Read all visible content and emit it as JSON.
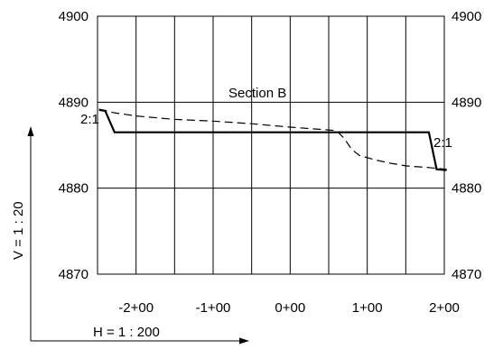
{
  "chart_data": {
    "type": "line",
    "title": "Section B",
    "x_ticks": [
      "-2+00",
      "-1+00",
      "0+00",
      "1+00",
      "2+00"
    ],
    "y_ticks_left": [
      "4870",
      "4880",
      "4890",
      "4900"
    ],
    "y_ticks_right": [
      "4870",
      "4880",
      "4890",
      "4900"
    ],
    "xlim": [
      -250,
      200
    ],
    "ylim": [
      4870,
      4900
    ],
    "x_grid_step": 50,
    "y_grid_step": 10,
    "grid": true,
    "series": [
      {
        "style": "solid",
        "role": "proposed section",
        "color": "#000000",
        "points": [
          [
            -248,
            4889.1
          ],
          [
            -240,
            4889.0
          ],
          [
            -228,
            4886.5
          ],
          [
            180,
            4886.5
          ],
          [
            190,
            4882.2
          ],
          [
            203,
            4882.1
          ]
        ]
      },
      {
        "style": "dashed",
        "role": "existing ground",
        "color": "#000000",
        "points": [
          [
            -248,
            4889.2
          ],
          [
            -230,
            4888.8
          ],
          [
            -200,
            4888.4
          ],
          [
            -150,
            4888.0
          ],
          [
            -100,
            4887.8
          ],
          [
            -50,
            4887.5
          ],
          [
            0,
            4887.1
          ],
          [
            60,
            4886.7
          ],
          [
            70,
            4885.8
          ],
          [
            80,
            4884.5
          ],
          [
            90,
            4883.8
          ],
          [
            110,
            4883.3
          ],
          [
            130,
            4882.9
          ],
          [
            150,
            4882.6
          ],
          [
            180,
            4882.4
          ],
          [
            203,
            4882.2
          ]
        ]
      }
    ],
    "annotations": [
      {
        "text": "2:1",
        "x": -259,
        "y": 4887.3
      },
      {
        "text": "2:1",
        "x": 188,
        "y": 4885.0
      }
    ]
  },
  "scale": {
    "vertical": "V = 1 : 20",
    "horizontal": "H = 1 : 200"
  }
}
